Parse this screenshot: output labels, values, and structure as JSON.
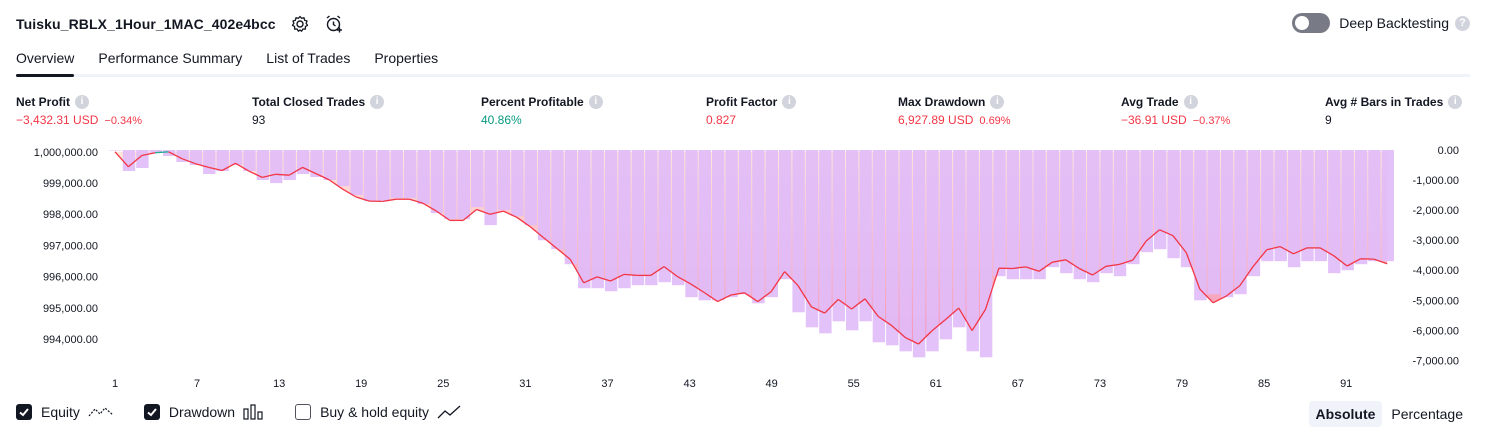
{
  "header": {
    "title": "Tuisku_RBLX_1Hour_1MAC_402e4bcc",
    "deep_label": "Deep Backtesting",
    "deep_enabled": false
  },
  "tabs": [
    {
      "label": "Overview",
      "active": true
    },
    {
      "label": "Performance Summary",
      "active": false
    },
    {
      "label": "List of Trades",
      "active": false
    },
    {
      "label": "Properties",
      "active": false
    }
  ],
  "stats": [
    {
      "label": "Net Profit",
      "value": "−3,432.31 USD",
      "pct": "−0.34%",
      "color": "red"
    },
    {
      "label": "Total Closed Trades",
      "value": "93",
      "pct": "",
      "color": "default"
    },
    {
      "label": "Percent Profitable",
      "value": "40.86%",
      "pct": "",
      "color": "green"
    },
    {
      "label": "Profit Factor",
      "value": "0.827",
      "pct": "",
      "color": "red"
    },
    {
      "label": "Max Drawdown",
      "value": "6,927.89 USD",
      "pct": "0.69%",
      "color": "red"
    },
    {
      "label": "Avg Trade",
      "value": "−36.91 USD",
      "pct": "−0.37%",
      "color": "red"
    },
    {
      "label": "Avg # Bars in Trades",
      "value": "9",
      "pct": "",
      "color": "default"
    }
  ],
  "legend": {
    "equity": "Equity",
    "drawdown": "Drawdown",
    "buyhold": "Buy & hold equity"
  },
  "modes": [
    "Absolute",
    "Percentage"
  ],
  "colors": {
    "equity_line": "#f23645",
    "equity_up_line": "#22ab94",
    "drawdown_bar": "#e1bcf9",
    "area_top": "#ffd6c4",
    "area_bottom": "#f48cb0"
  },
  "chart_data": {
    "type": "bar",
    "left_axis_ticks": [
      "1,000,000.00",
      "999,000.00",
      "998,000.00",
      "997,000.00",
      "996,000.00",
      "995,000.00",
      "994,000.00"
    ],
    "right_axis_ticks": [
      "0.00",
      "-1,000.00",
      "-2,000.00",
      "-3,000.00",
      "-4,000.00",
      "-5,000.00",
      "-6,000.00",
      "-7,000.00"
    ],
    "x_ticks": [
      "1",
      "7",
      "13",
      "19",
      "25",
      "31",
      "37",
      "43",
      "49",
      "55",
      "61",
      "67",
      "73",
      "79",
      "85",
      "91"
    ],
    "x_range": [
      1,
      94
    ],
    "equity_ylim": [
      993500,
      1000100
    ],
    "drawdown_ylim": [
      -7300,
      0
    ],
    "equity_values": [
      1000000,
      999520,
      999880,
      999970,
      1000000,
      999780,
      999620,
      999500,
      999400,
      999630,
      999380,
      999180,
      999280,
      999250,
      999500,
      999300,
      999100,
      998800,
      998550,
      998420,
      998410,
      998480,
      998480,
      998350,
      998100,
      997800,
      997800,
      998150,
      998000,
      998100,
      997900,
      997600,
      997250,
      996900,
      996550,
      995800,
      995990,
      995860,
      996070,
      996040,
      996040,
      996320,
      996000,
      995760,
      995490,
      995200,
      995410,
      995480,
      995200,
      995520,
      996160,
      995710,
      995030,
      994830,
      995270,
      994960,
      995290,
      994720,
      994430,
      994050,
      993840,
      994260,
      994620,
      994990,
      994270,
      994950,
      996270,
      996260,
      996310,
      996170,
      996460,
      996540,
      996260,
      996050,
      996330,
      996390,
      996530,
      997140,
      997500,
      997310,
      996760,
      995600,
      995160,
      995380,
      995710,
      996330,
      996860,
      996960,
      996730,
      996920,
      996920,
      996670,
      996340,
      996570,
      996560,
      996410
    ],
    "drawdown_values": [
      0,
      -700,
      -600,
      -100,
      -200,
      -400,
      -500,
      -800,
      -700,
      -500,
      -700,
      -1000,
      -1100,
      -1000,
      -800,
      -900,
      -1000,
      -1200,
      -1500,
      -1700,
      -1700,
      -1600,
      -1600,
      -1800,
      -2100,
      -2300,
      -2300,
      -1900,
      -2500,
      -2000,
      -2200,
      -2500,
      -3000,
      -3300,
      -3800,
      -4600,
      -4600,
      -4700,
      -4600,
      -4500,
      -4500,
      -4400,
      -4500,
      -4900,
      -5000,
      -5000,
      -4900,
      -4800,
      -5100,
      -4900,
      -4300,
      -5400,
      -5900,
      -6100,
      -5700,
      -6000,
      -5700,
      -6400,
      -6500,
      -6700,
      -6900,
      -6700,
      -6300,
      -5900,
      -6700,
      -6900,
      -4200,
      -4300,
      -4300,
      -4300,
      -3900,
      -4100,
      -4300,
      -4400,
      -4100,
      -4200,
      -3800,
      -3400,
      -3300,
      -3600,
      -3900,
      -5000,
      -4800,
      -4900,
      -4800,
      -4200,
      -3700,
      -3700,
      -3900,
      -3700,
      -3700,
      -4100,
      -4000,
      -3800,
      -3700,
      -3700
    ]
  }
}
